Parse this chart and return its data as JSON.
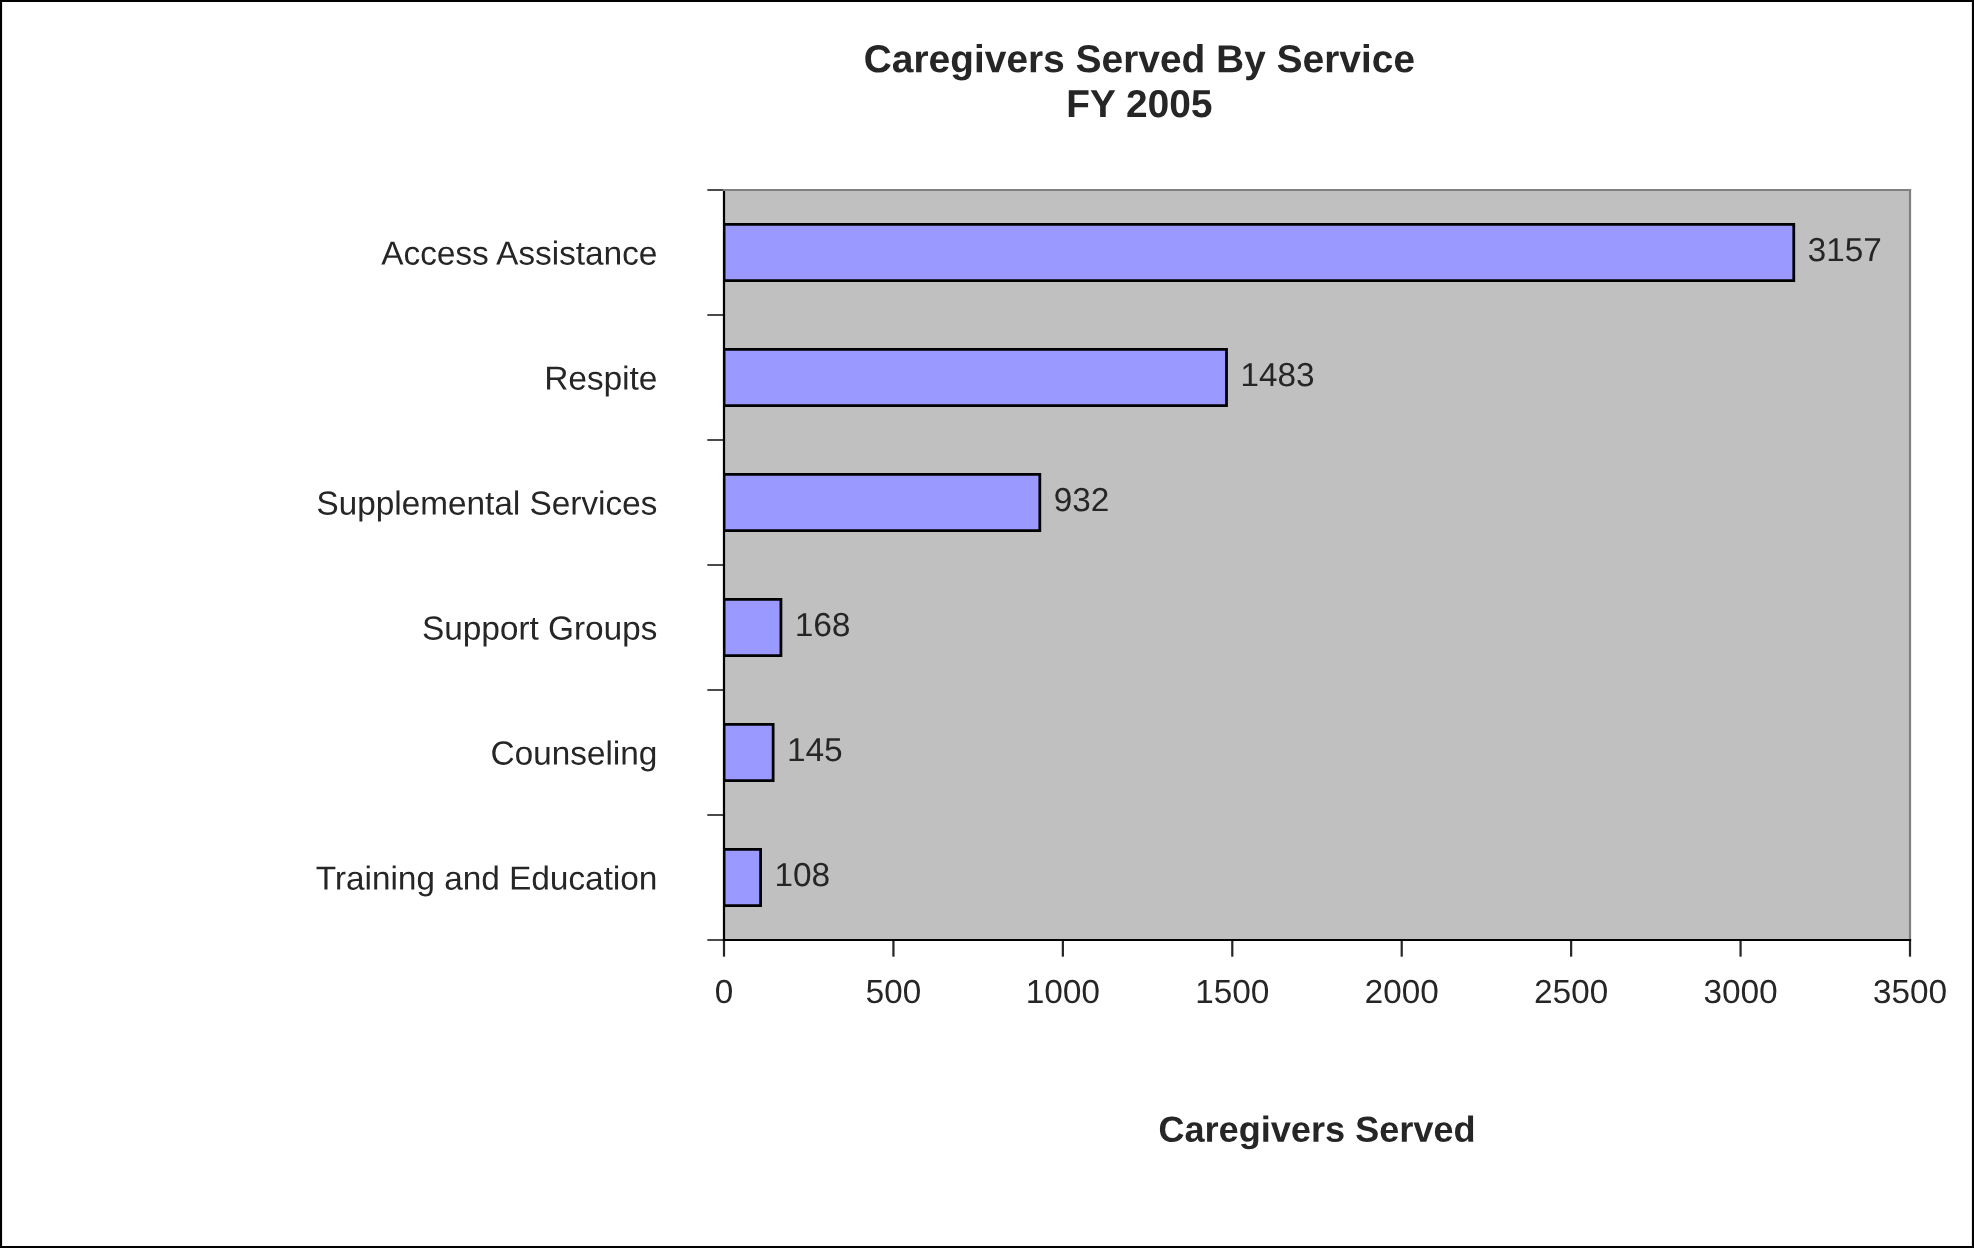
{
  "chart_data": {
    "type": "bar",
    "orientation": "horizontal",
    "title": "Caregivers Served By Service\nFY 2005",
    "xlabel": "Caregivers Served",
    "categories": [
      "Access Assistance",
      "Respite",
      "Supplemental Services",
      "Support Groups",
      "Counseling",
      "Training and Education"
    ],
    "values": [
      3157,
      1483,
      932,
      168,
      145,
      108
    ],
    "color": "#9999ff",
    "xlim": [
      0,
      3500
    ],
    "xticks": [
      0,
      500,
      1000,
      1500,
      2000,
      2500,
      3000,
      3500
    ],
    "grid": false,
    "data_labels": true,
    "legend": false
  }
}
